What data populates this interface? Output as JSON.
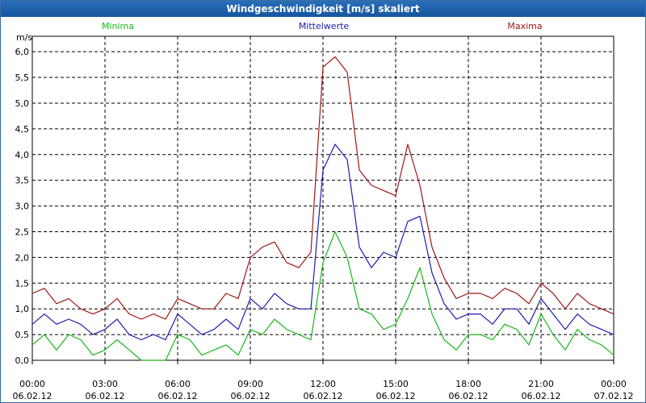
{
  "window": {
    "title": "Windgeschwindigkeit [m/s] skaliert"
  },
  "colors": {
    "minima": "#18b818",
    "mittelwerte": "#1c1cb0",
    "maxima": "#a01818",
    "grid": "#000000",
    "title_bg": "#1a5fa8"
  },
  "chart_data": {
    "type": "line",
    "title": "Windgeschwindigkeit [m/s] skaliert",
    "ylabel": "m/s",
    "ylim": [
      0,
      6.3
    ],
    "yticks": [
      "0,0",
      "0,5",
      "1,0",
      "1,5",
      "2,0",
      "2,5",
      "3,0",
      "3,5",
      "4,0",
      "4,5",
      "5,0",
      "5,5",
      "6,0"
    ],
    "xticks": [
      {
        "time": "00:00",
        "date": "06.02.12"
      },
      {
        "time": "03:00",
        "date": "06.02.12"
      },
      {
        "time": "06:00",
        "date": "06.02.12"
      },
      {
        "time": "09:00",
        "date": "06.02.12"
      },
      {
        "time": "12:00",
        "date": "06.02.12"
      },
      {
        "time": "15:00",
        "date": "06.02.12"
      },
      {
        "time": "18:00",
        "date": "06.02.12"
      },
      {
        "time": "21:00",
        "date": "06.02.12"
      },
      {
        "time": "00:00",
        "date": "07.02.12"
      }
    ],
    "grid": true,
    "legend_position": "top",
    "x_hours": [
      0,
      0.5,
      1,
      1.5,
      2,
      2.5,
      3,
      3.5,
      4,
      4.5,
      5,
      5.5,
      6,
      6.5,
      7,
      7.5,
      8,
      8.5,
      9,
      9.5,
      10,
      10.5,
      11,
      11.5,
      12,
      12.5,
      13,
      13.5,
      14,
      14.5,
      15,
      15.5,
      16,
      16.5,
      17,
      17.5,
      18,
      18.5,
      19,
      19.5,
      20,
      20.5,
      21,
      21.5,
      22,
      22.5,
      23,
      23.5,
      24
    ],
    "series": [
      {
        "name": "Minima",
        "values": [
          0.3,
          0.5,
          0.2,
          0.5,
          0.4,
          0.1,
          0.2,
          0.4,
          0.2,
          0.0,
          0.0,
          0.0,
          0.5,
          0.4,
          0.1,
          0.2,
          0.3,
          0.1,
          0.6,
          0.5,
          0.8,
          0.6,
          0.5,
          0.4,
          1.9,
          2.5,
          2.0,
          1.0,
          0.9,
          0.6,
          0.7,
          1.2,
          1.8,
          0.9,
          0.4,
          0.2,
          0.5,
          0.5,
          0.4,
          0.7,
          0.6,
          0.3,
          0.9,
          0.5,
          0.2,
          0.6,
          0.4,
          0.3,
          0.1
        ]
      },
      {
        "name": "Mittelwerte",
        "values": [
          0.7,
          0.9,
          0.7,
          0.8,
          0.7,
          0.5,
          0.6,
          0.8,
          0.5,
          0.4,
          0.5,
          0.4,
          0.9,
          0.7,
          0.5,
          0.6,
          0.8,
          0.6,
          1.2,
          1.0,
          1.3,
          1.1,
          1.0,
          1.0,
          3.7,
          4.2,
          3.9,
          2.2,
          1.8,
          2.1,
          2.0,
          2.7,
          2.8,
          1.7,
          1.1,
          0.8,
          0.9,
          0.9,
          0.7,
          1.0,
          1.0,
          0.7,
          1.2,
          0.9,
          0.6,
          0.9,
          0.7,
          0.6,
          0.5
        ]
      },
      {
        "name": "Maxima",
        "values": [
          1.3,
          1.4,
          1.1,
          1.2,
          1.0,
          0.9,
          1.0,
          1.2,
          0.9,
          0.8,
          0.9,
          0.8,
          1.2,
          1.1,
          1.0,
          1.0,
          1.3,
          1.2,
          2.0,
          2.2,
          2.3,
          1.9,
          1.8,
          2.1,
          5.7,
          5.9,
          5.6,
          3.7,
          3.4,
          3.3,
          3.2,
          4.2,
          3.4,
          2.2,
          1.6,
          1.2,
          1.3,
          1.3,
          1.2,
          1.4,
          1.3,
          1.1,
          1.5,
          1.3,
          1.0,
          1.3,
          1.1,
          1.0,
          0.9
        ]
      }
    ]
  }
}
